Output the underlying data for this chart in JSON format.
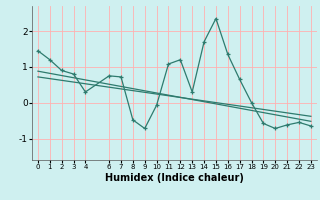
{
  "xlabel": "Humidex (Indice chaleur)",
  "bg_color": "#cff0f0",
  "grid_color": "#ffb0b0",
  "line_color": "#2e7b6e",
  "xlim": [
    -0.5,
    23.5
  ],
  "ylim": [
    -1.6,
    2.7
  ],
  "xticks": [
    0,
    1,
    2,
    3,
    4,
    6,
    7,
    8,
    9,
    10,
    11,
    12,
    13,
    14,
    15,
    16,
    17,
    18,
    19,
    20,
    21,
    22,
    23
  ],
  "yticks": [
    -1,
    0,
    1,
    2
  ],
  "series1_x": [
    0,
    1,
    2,
    3,
    4,
    6,
    7,
    8,
    9,
    10,
    11,
    12,
    13,
    14,
    15,
    16,
    17,
    18,
    19,
    20,
    21,
    22,
    23
  ],
  "series1_y": [
    1.45,
    1.2,
    0.9,
    0.8,
    0.3,
    0.75,
    0.72,
    -0.48,
    -0.72,
    -0.07,
    1.08,
    1.2,
    0.3,
    1.7,
    2.35,
    1.35,
    0.65,
    0.0,
    -0.58,
    -0.72,
    -0.62,
    -0.55,
    -0.65
  ],
  "trend1_x": [
    0,
    23
  ],
  "trend1_y": [
    0.88,
    -0.52
  ],
  "trend2_x": [
    0,
    23
  ],
  "trend2_y": [
    0.72,
    -0.38
  ]
}
